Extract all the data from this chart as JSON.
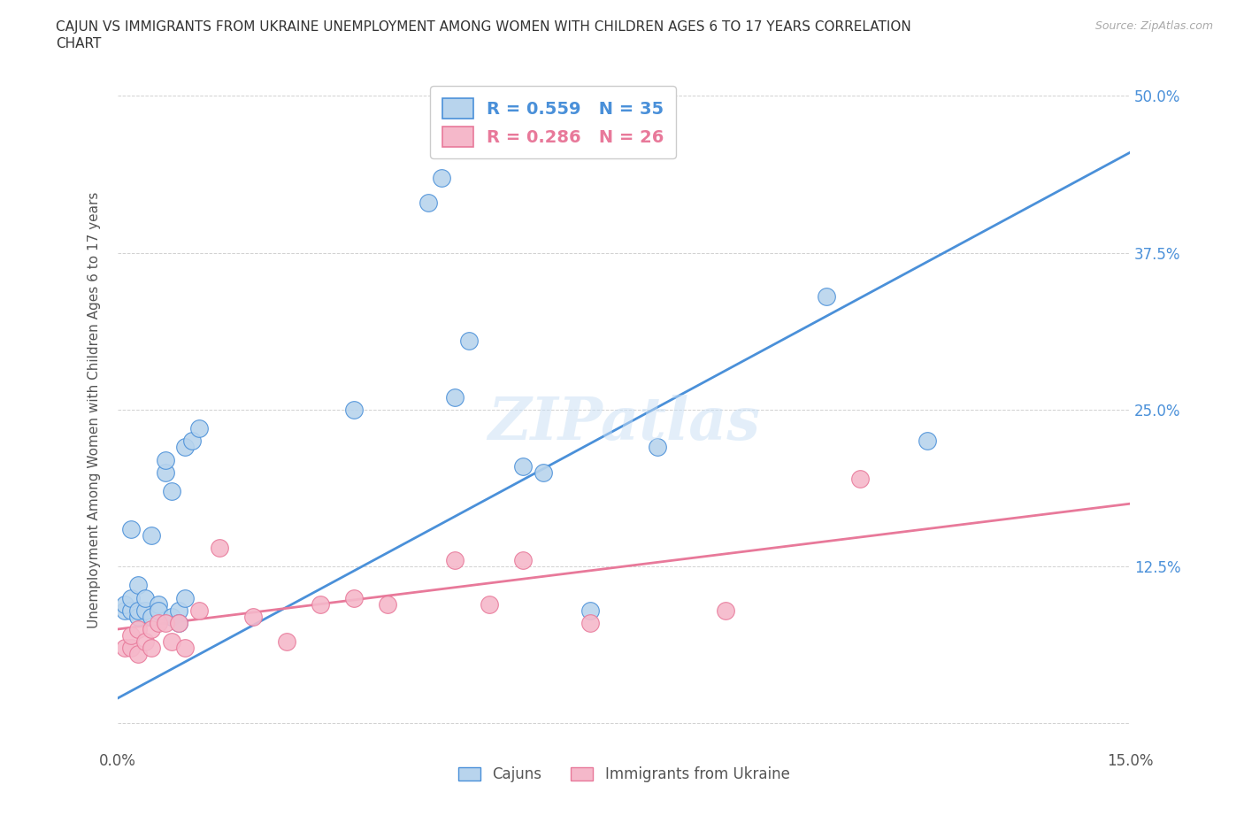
{
  "title_line1": "CAJUN VS IMMIGRANTS FROM UKRAINE UNEMPLOYMENT AMONG WOMEN WITH CHILDREN AGES 6 TO 17 YEARS CORRELATION",
  "title_line2": "CHART",
  "source": "Source: ZipAtlas.com",
  "ylabel": "Unemployment Among Women with Children Ages 6 to 17 years",
  "xlabel_cajuns": "Cajuns",
  "xlabel_ukraine": "Immigrants from Ukraine",
  "xlim": [
    0.0,
    0.15
  ],
  "ylim": [
    -0.02,
    0.52
  ],
  "xticks": [
    0.0,
    0.03,
    0.06,
    0.09,
    0.12,
    0.15
  ],
  "xtick_labels": [
    "0.0%",
    "",
    "",
    "",
    "",
    "15.0%"
  ],
  "yticks": [
    0.0,
    0.125,
    0.25,
    0.375,
    0.5
  ],
  "ytick_labels_right": [
    "",
    "12.5%",
    "25.0%",
    "37.5%",
    "50.0%"
  ],
  "cajun_color": "#b8d4ed",
  "ukraine_color": "#f5b8ca",
  "cajun_line_color": "#4a90d9",
  "ukraine_line_color": "#e8799a",
  "R_cajun": 0.559,
  "N_cajun": 35,
  "R_ukraine": 0.286,
  "N_ukraine": 26,
  "watermark": "ZIPatlas",
  "cajun_x": [
    0.001,
    0.001,
    0.002,
    0.002,
    0.002,
    0.003,
    0.003,
    0.003,
    0.004,
    0.004,
    0.005,
    0.005,
    0.006,
    0.006,
    0.007,
    0.007,
    0.008,
    0.008,
    0.009,
    0.009,
    0.01,
    0.01,
    0.011,
    0.012,
    0.035,
    0.046,
    0.048,
    0.05,
    0.052,
    0.06,
    0.063,
    0.07,
    0.08,
    0.105,
    0.12
  ],
  "cajun_y": [
    0.09,
    0.095,
    0.09,
    0.1,
    0.155,
    0.085,
    0.09,
    0.11,
    0.09,
    0.1,
    0.085,
    0.15,
    0.095,
    0.09,
    0.2,
    0.21,
    0.085,
    0.185,
    0.09,
    0.08,
    0.1,
    0.22,
    0.225,
    0.235,
    0.25,
    0.415,
    0.435,
    0.26,
    0.305,
    0.205,
    0.2,
    0.09,
    0.22,
    0.34,
    0.225
  ],
  "ukraine_x": [
    0.001,
    0.002,
    0.002,
    0.003,
    0.003,
    0.004,
    0.005,
    0.005,
    0.006,
    0.007,
    0.008,
    0.009,
    0.01,
    0.012,
    0.015,
    0.02,
    0.025,
    0.03,
    0.035,
    0.04,
    0.05,
    0.055,
    0.06,
    0.07,
    0.09,
    0.11
  ],
  "ukraine_y": [
    0.06,
    0.06,
    0.07,
    0.055,
    0.075,
    0.065,
    0.06,
    0.075,
    0.08,
    0.08,
    0.065,
    0.08,
    0.06,
    0.09,
    0.14,
    0.085,
    0.065,
    0.095,
    0.1,
    0.095,
    0.13,
    0.095,
    0.13,
    0.08,
    0.09,
    0.195
  ]
}
